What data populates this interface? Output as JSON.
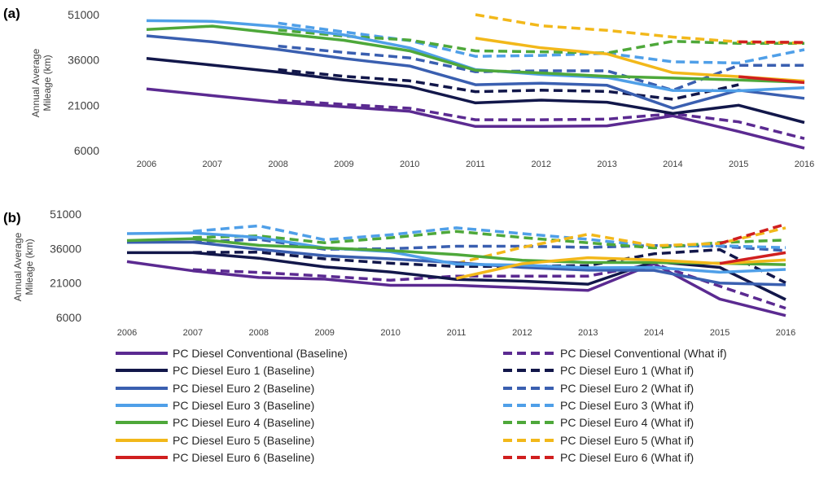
{
  "colors": {
    "conventional": "#5b2a91",
    "euro1": "#12174a",
    "euro2": "#3a5fb0",
    "euro3": "#4f9fe8",
    "euro4": "#4ea83a",
    "euro5": "#f2b81a",
    "euro6": "#d01f1f"
  },
  "chart_data": [
    {
      "type": "line",
      "panel_label": "(a)",
      "ylabel": "Annual Average Mileage (km)",
      "ylim": [
        6000,
        51000
      ],
      "yticks": [
        6000,
        21000,
        36000,
        51000
      ],
      "x": [
        "2006",
        "2007",
        "2008",
        "2009",
        "2010",
        "2011",
        "2012",
        "2013",
        "2014",
        "2015",
        "2016"
      ],
      "series": [
        {
          "name": "PC  Diesel Conventional (Baseline)",
          "style": "solid",
          "color": "conventional",
          "values": [
            26400,
            24200,
            22000,
            20500,
            19000,
            14000,
            14000,
            14200,
            17500,
            12300,
            6800
          ]
        },
        {
          "name": "PC  Diesel Conventional (What if)",
          "style": "dashed",
          "color": "conventional",
          "values": [
            null,
            null,
            22600,
            21300,
            20000,
            16200,
            16200,
            16400,
            18200,
            15500,
            10000
          ]
        },
        {
          "name": "PC  Diesel Euro 1 (Baseline)",
          "style": "solid",
          "color": "euro1",
          "values": [
            36500,
            34300,
            32000,
            29400,
            27200,
            21800,
            22700,
            22000,
            18300,
            21000,
            15300
          ]
        },
        {
          "name": "PC  Diesel Euro 1 (What if)",
          "style": "dashed",
          "color": "euro1",
          "values": [
            null,
            null,
            32800,
            30600,
            29100,
            25500,
            26000,
            25600,
            23000,
            27800,
            null
          ]
        },
        {
          "name": "PC  Diesel Euro 2 (Baseline)",
          "style": "solid",
          "color": "euro2",
          "values": [
            44000,
            42000,
            39500,
            36500,
            34000,
            27800,
            28300,
            27600,
            20000,
            26000,
            23300
          ]
        },
        {
          "name": "PC  Diesel Euro 2 (What if)",
          "style": "dashed",
          "color": "euro2",
          "values": [
            null,
            null,
            40600,
            38500,
            36700,
            32100,
            32400,
            32400,
            26000,
            34200,
            34200
          ]
        },
        {
          "name": "PC  Diesel Euro 3 (Baseline)",
          "style": "solid",
          "color": "euro3",
          "values": [
            49000,
            48800,
            47000,
            44300,
            40000,
            32800,
            31200,
            30200,
            25900,
            25800,
            26800
          ]
        },
        {
          "name": "PC  Diesel Euro 3 (What if)",
          "style": "dashed",
          "color": "euro3",
          "values": [
            null,
            null,
            48200,
            45300,
            42400,
            37200,
            37500,
            38200,
            35400,
            35000,
            39400
          ]
        },
        {
          "name": "PC  Diesel Euro 4 (Baseline)",
          "style": "solid",
          "color": "euro4",
          "values": [
            46100,
            47200,
            44800,
            42500,
            39000,
            32600,
            31700,
            30600,
            30000,
            29400,
            28600
          ]
        },
        {
          "name": "PC  Diesel Euro 4 (What if)",
          "style": "dashed",
          "color": "euro4",
          "values": [
            null,
            null,
            45900,
            43900,
            42600,
            39000,
            38700,
            38300,
            42200,
            41500,
            41500
          ]
        },
        {
          "name": "PC  Diesel Euro 5 (Baseline)",
          "style": "solid",
          "color": "euro5",
          "values": [
            null,
            null,
            null,
            null,
            null,
            43200,
            40000,
            38000,
            31800,
            30500,
            29000
          ]
        },
        {
          "name": "PC  Diesel Euro 5 (What if)",
          "style": "dashed",
          "color": "euro5",
          "values": [
            null,
            null,
            null,
            null,
            null,
            51000,
            47300,
            45800,
            43600,
            42000,
            41600
          ]
        },
        {
          "name": "PC  Diesel Euro 6  (Baseline)",
          "style": "solid",
          "color": "euro6",
          "values": [
            null,
            null,
            null,
            null,
            null,
            null,
            null,
            null,
            null,
            30500,
            28500
          ]
        },
        {
          "name": "PC  Diesel Euro 6  (What if)",
          "style": "dashed",
          "color": "euro6",
          "values": [
            null,
            null,
            null,
            null,
            null,
            null,
            null,
            null,
            null,
            42000,
            41800
          ]
        }
      ]
    },
    {
      "type": "line",
      "panel_label": "(b)",
      "ylabel": "Annual Average Mileage (km)",
      "ylim": [
        6000,
        51000
      ],
      "yticks": [
        6000,
        21000,
        36000,
        51000
      ],
      "x": [
        "2006",
        "2007",
        "2008",
        "2009",
        "2010",
        "2011",
        "2012",
        "2013",
        "2014",
        "2015",
        "2016"
      ],
      "series": [
        {
          "name": "PC  Diesel Conventional (Baseline)",
          "style": "solid",
          "color": "conventional",
          "values": [
            30300,
            26300,
            23400,
            22700,
            20000,
            20000,
            18900,
            17800,
            29400,
            14000,
            6800
          ]
        },
        {
          "name": "PC  Diesel Conventional (What if)",
          "style": "dashed",
          "color": "conventional",
          "values": [
            null,
            26800,
            25600,
            24000,
            22200,
            24000,
            24000,
            24000,
            29400,
            19600,
            10000
          ]
        },
        {
          "name": "PC  Diesel Euro 1 (Baseline)",
          "style": "solid",
          "color": "euro1",
          "values": [
            34200,
            34200,
            31800,
            28000,
            25800,
            22600,
            21800,
            20500,
            30300,
            27800,
            13800
          ]
        },
        {
          "name": "PC  Diesel Euro 1 (What if)",
          "style": "dashed",
          "color": "euro1",
          "values": [
            null,
            34300,
            34400,
            31500,
            29600,
            28200,
            28200,
            28600,
            33700,
            35500,
            21100
          ]
        },
        {
          "name": "PC  Diesel Euro 2 (Baseline)",
          "style": "solid",
          "color": "euro2",
          "values": [
            38700,
            38800,
            35700,
            32900,
            31500,
            29800,
            27800,
            26600,
            26500,
            21000,
            20200
          ]
        },
        {
          "name": "PC  Diesel Euro 2 (What if)",
          "style": "dashed",
          "color": "euro2",
          "values": [
            null,
            38800,
            40000,
            35700,
            35900,
            37000,
            37000,
            36500,
            37300,
            37000,
            35100
          ]
        },
        {
          "name": "PC  Diesel Euro 3 (Baseline)",
          "style": "solid",
          "color": "euro3",
          "values": [
            42500,
            42800,
            40800,
            36300,
            34600,
            29200,
            28800,
            27600,
            27800,
            25700,
            26900
          ]
        },
        {
          "name": "PC  Diesel Euro 3 (What if)",
          "style": "dashed",
          "color": "euro3",
          "values": [
            null,
            43500,
            45900,
            39800,
            42000,
            45000,
            42500,
            40000,
            37000,
            37200,
            36400
          ]
        },
        {
          "name": "PC  Diesel Euro 4 (Baseline)",
          "style": "solid",
          "color": "euro4",
          "values": [
            39500,
            40300,
            37400,
            36300,
            35100,
            33400,
            30900,
            29900,
            29900,
            29600,
            29000
          ]
        },
        {
          "name": "PC  Diesel Euro 4 (What if)",
          "style": "dashed",
          "color": "euro4",
          "values": [
            null,
            40800,
            41500,
            38500,
            40700,
            43500,
            40800,
            38500,
            36300,
            38600,
            39700
          ]
        },
        {
          "name": "PC  Diesel Euro 5 (Baseline)",
          "style": "solid",
          "color": "euro5",
          "values": [
            null,
            null,
            null,
            null,
            null,
            23000,
            29400,
            32000,
            31000,
            29500,
            31000
          ]
        },
        {
          "name": "PC  Diesel Euro 5 (What if)",
          "style": "dashed",
          "color": "euro5",
          "values": [
            null,
            null,
            null,
            null,
            null,
            29500,
            36500,
            42200,
            37200,
            38200,
            45000
          ]
        },
        {
          "name": "PC  Diesel Euro 6  (Baseline)",
          "style": "solid",
          "color": "euro6",
          "values": [
            null,
            null,
            null,
            null,
            null,
            null,
            null,
            null,
            null,
            29500,
            34200
          ]
        },
        {
          "name": "PC  Diesel Euro 6  (What if)",
          "style": "dashed",
          "color": "euro6",
          "values": [
            null,
            null,
            null,
            null,
            null,
            null,
            null,
            null,
            null,
            38200,
            46600
          ]
        }
      ]
    }
  ]
}
